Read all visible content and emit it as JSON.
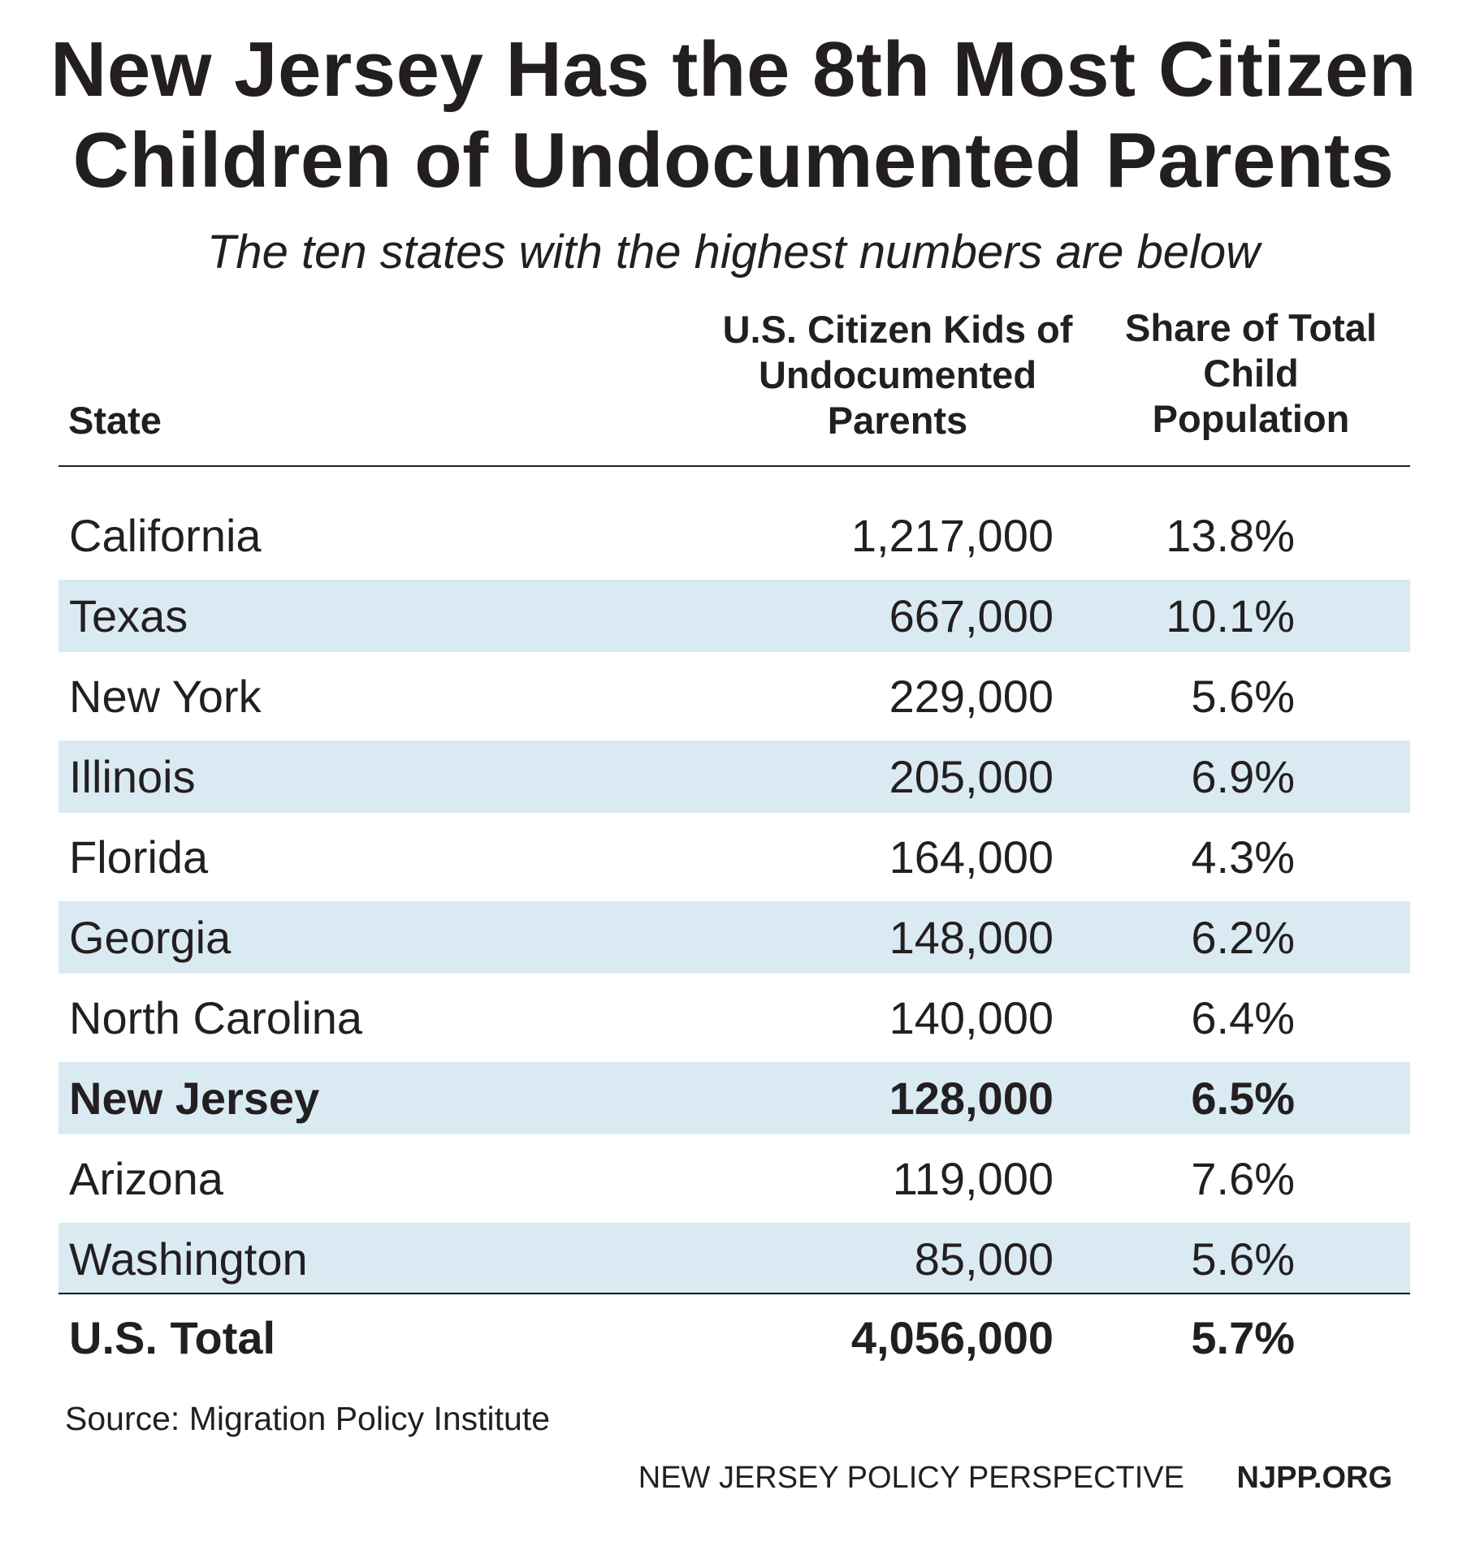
{
  "chart_data": {
    "type": "table",
    "title_lines": [
      "New Jersey Has the 8th Most Citizen",
      "Children of Undocumented Parents"
    ],
    "subtitle": "The ten states with the highest numbers are below",
    "columns": {
      "state": [
        "State"
      ],
      "kids": [
        "U.S. Citizen Kids of",
        "Undocumented",
        "Parents"
      ],
      "share": [
        "Share of Total",
        "Child",
        "Population"
      ]
    },
    "rows": [
      {
        "state": "California",
        "kids": "1,217,000",
        "share": "13.8%"
      },
      {
        "state": "Texas",
        "kids": "667,000",
        "share": "10.1%"
      },
      {
        "state": "New York",
        "kids": "229,000",
        "share": "5.6%"
      },
      {
        "state": "Illinois",
        "kids": "205,000",
        "share": "6.9%"
      },
      {
        "state": "Florida",
        "kids": "164,000",
        "share": "4.3%"
      },
      {
        "state": "Georgia",
        "kids": "148,000",
        "share": "6.2%"
      },
      {
        "state": "North Carolina",
        "kids": "140,000",
        "share": "6.4%"
      },
      {
        "state": "New Jersey",
        "kids": "128,000",
        "share": "6.5%"
      },
      {
        "state": "Arizona",
        "kids": "119,000",
        "share": "7.6%"
      },
      {
        "state": "Washington",
        "kids": "85,000",
        "share": "5.6%"
      }
    ],
    "highlighted_row": "New Jersey",
    "total": {
      "state": "U.S. Total",
      "kids": "4,056,000",
      "share": "5.7%"
    },
    "source": "Source: Migration Policy Institute"
  },
  "footer": {
    "organization": "NEW JERSEY POLICY PERSPECTIVE",
    "url": "NJPP.ORG"
  },
  "colors": {
    "text": "#231f20",
    "row_shading": "#daeaf2",
    "background": "#ffffff"
  }
}
